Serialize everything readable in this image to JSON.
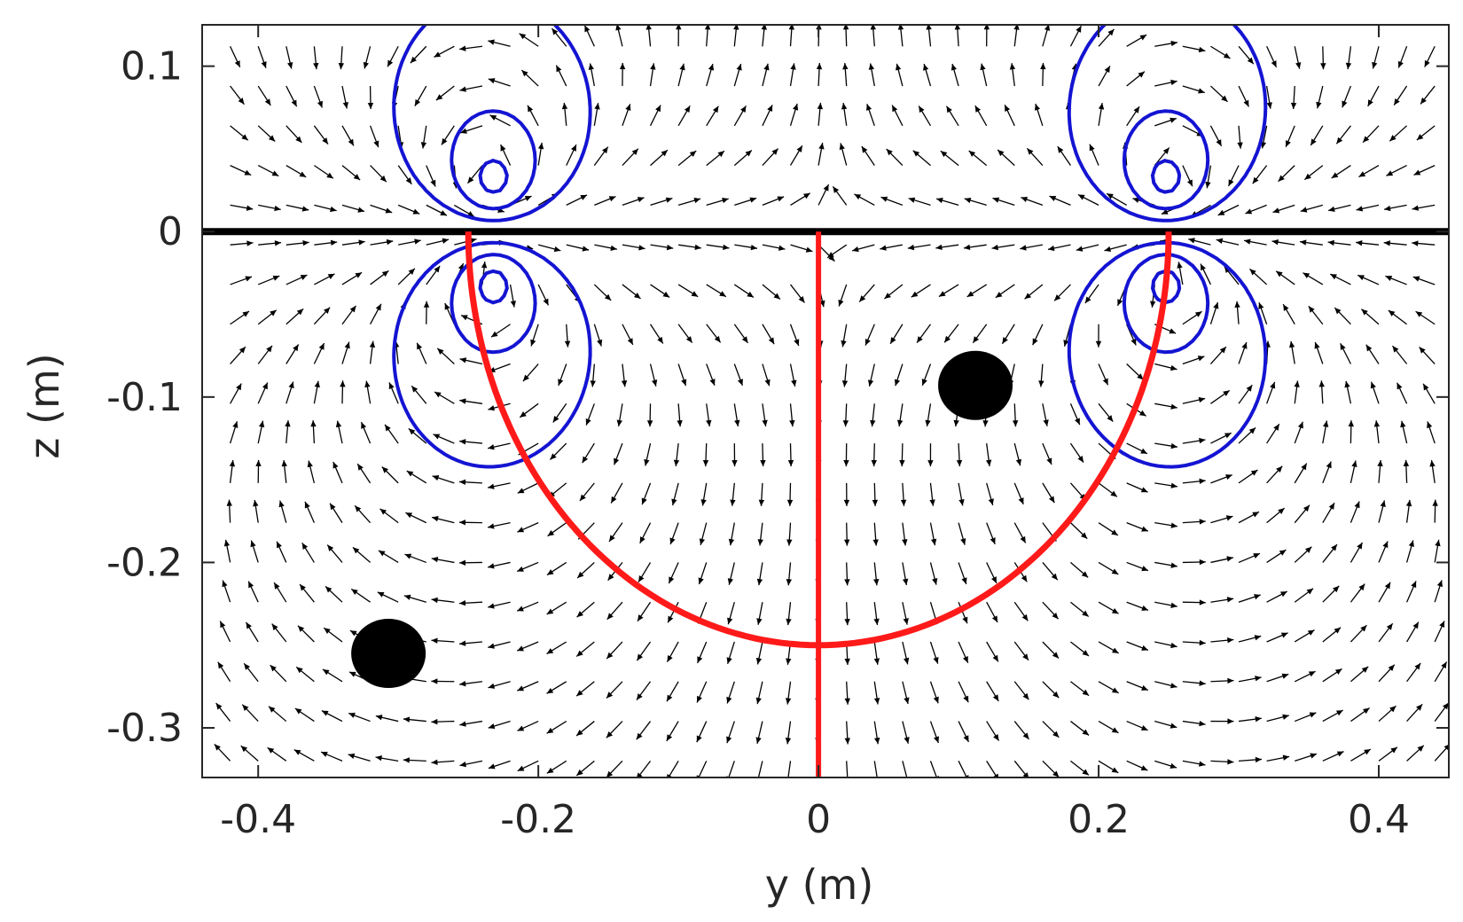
{
  "chart_data": {
    "type": "vector-field",
    "xlabel": "y (m)",
    "ylabel": "z (m)",
    "xlim": [
      -0.44,
      0.45
    ],
    "ylim": [
      -0.33,
      0.125
    ],
    "xticks": [
      -0.4,
      -0.2,
      0,
      0.2,
      0.4
    ],
    "xtick_labels": [
      "-0.4",
      "-0.2",
      "0",
      "0.2",
      "0.4"
    ],
    "yticks": [
      0.1,
      0,
      -0.1,
      -0.2,
      -0.3
    ],
    "ytick_labels": [
      "0.1",
      "0",
      "-0.1",
      "-0.2",
      "-0.3"
    ],
    "grid": false,
    "vortices": [
      {
        "y": -0.232,
        "z": 0.025,
        "sense": "counter-clockwise"
      },
      {
        "y": 0.248,
        "z": 0.025,
        "sense": "clockwise"
      }
    ],
    "surface_line": {
      "z": 0,
      "color": "#000000"
    },
    "streamline_color": "#1414d2",
    "quiver_color": "#000000",
    "tank_outline": {
      "color": "#ff1a1a",
      "shape": "semicircle",
      "center_y": 0,
      "radius": 0.25,
      "center_line": {
        "y": 0,
        "z_range": [
          -0.33,
          0
        ]
      }
    },
    "particles": [
      {
        "y": 0.112,
        "z": -0.093
      },
      {
        "y": -0.307,
        "z": -0.255
      }
    ],
    "particle_color": "#000000"
  }
}
